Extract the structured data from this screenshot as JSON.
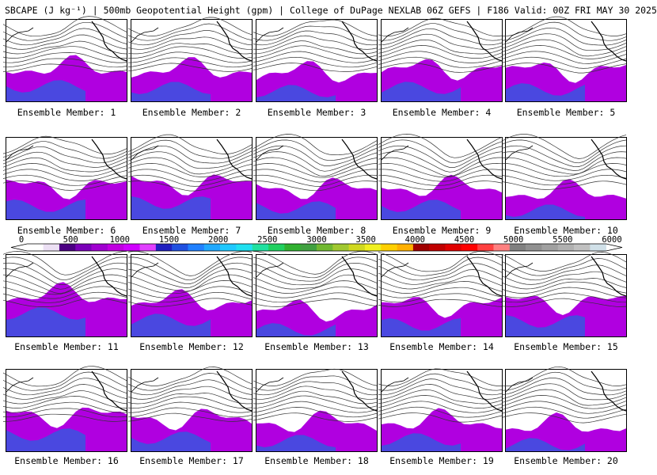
{
  "title": "SBCAPE (J kg⁻¹) | 500mb Geopotential Height (gpm) | College of DuPage NEXLAB 06Z GEFS | F186 Valid: 00Z FRI MAY 30 2025",
  "colorbar": {
    "ticks": [
      "0",
      "500",
      "1000",
      "1500",
      "2000",
      "2500",
      "3000",
      "3500",
      "4000",
      "4500",
      "5000",
      "5500",
      "6000"
    ],
    "colors": [
      "#ffffff",
      "#ece0f4",
      "#4b0082",
      "#7a00b8",
      "#a000d0",
      "#c000e0",
      "#d000ff",
      "#e040ff",
      "#2020c0",
      "#2050e0",
      "#2080ff",
      "#20a8ff",
      "#20c8ff",
      "#20e0f0",
      "#20e0a0",
      "#20d060",
      "#30b030",
      "#40a040",
      "#70b830",
      "#a0c830",
      "#d0d820",
      "#f0f020",
      "#ffd000",
      "#ffb000",
      "#a00000",
      "#c00000",
      "#e00000",
      "#ff0000",
      "#ff4040",
      "#ff8080",
      "#808080",
      "#909090",
      "#a0a0a0",
      "#b0b0b0",
      "#c0c0c0",
      "#d0e0e8"
    ]
  },
  "members": [
    {
      "label": "Ensemble Member: 1"
    },
    {
      "label": "Ensemble Member: 2"
    },
    {
      "label": "Ensemble Member: 3"
    },
    {
      "label": "Ensemble Member: 4"
    },
    {
      "label": "Ensemble Member: 5"
    },
    {
      "label": "Ensemble Member: 6"
    },
    {
      "label": "Ensemble Member: 7"
    },
    {
      "label": "Ensemble Member: 8"
    },
    {
      "label": "Ensemble Member: 9"
    },
    {
      "label": "Ensemble Member: 10"
    },
    {
      "label": "Ensemble Member: 11"
    },
    {
      "label": "Ensemble Member: 12"
    },
    {
      "label": "Ensemble Member: 13"
    },
    {
      "label": "Ensemble Member: 14"
    },
    {
      "label": "Ensemble Member: 15"
    },
    {
      "label": "Ensemble Member: 16"
    },
    {
      "label": "Ensemble Member: 17"
    },
    {
      "label": "Ensemble Member: 18"
    },
    {
      "label": "Ensemble Member: 19"
    },
    {
      "label": "Ensemble Member: 20"
    }
  ]
}
